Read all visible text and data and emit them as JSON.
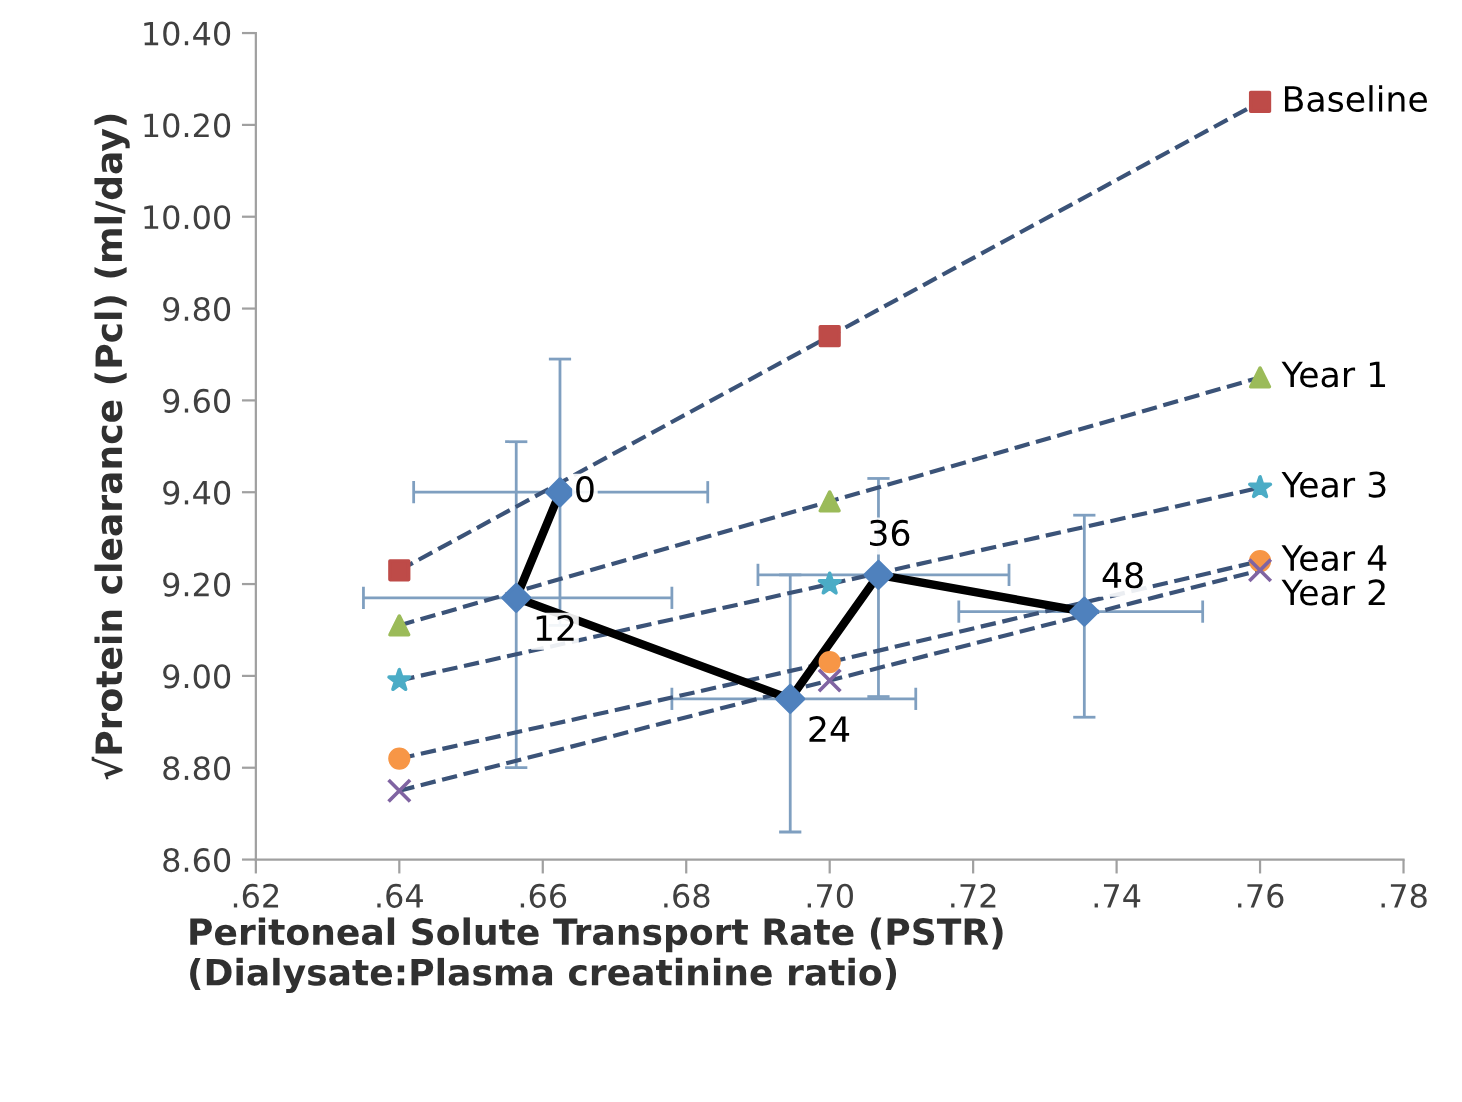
{
  "chart_data": {
    "type": "line",
    "xlabel": "Peritoneal Solute Transport Rate (PSTR)\n(Dialysate:Plasma creatinine ratio)",
    "ylabel": "√Protein clearance (Pcl) (ml/day)",
    "xlim": [
      0.62,
      0.78
    ],
    "ylim": [
      8.6,
      10.4
    ],
    "xticks": [
      {
        "value": 0.62,
        "label": ".62"
      },
      {
        "value": 0.64,
        "label": ".64"
      },
      {
        "value": 0.66,
        "label": ".66"
      },
      {
        "value": 0.68,
        "label": ".68"
      },
      {
        "value": 0.7,
        "label": ".70"
      },
      {
        "value": 0.72,
        "label": ".72"
      },
      {
        "value": 0.74,
        "label": ".74"
      },
      {
        "value": 0.76,
        "label": ".76"
      },
      {
        "value": 0.78,
        "label": ".78"
      }
    ],
    "yticks": [
      {
        "value": 8.6,
        "label": "8.60"
      },
      {
        "value": 8.8,
        "label": "8.80"
      },
      {
        "value": 9.0,
        "label": "9.00"
      },
      {
        "value": 9.2,
        "label": "9.20"
      },
      {
        "value": 9.4,
        "label": "9.40"
      },
      {
        "value": 9.6,
        "label": "9.60"
      },
      {
        "value": 9.8,
        "label": "9.80"
      },
      {
        "value": 10.0,
        "label": "10.00"
      },
      {
        "value": 10.2,
        "label": "10.20"
      },
      {
        "value": 10.4,
        "label": "10.40"
      }
    ],
    "grid": false,
    "legend": false,
    "series": [
      {
        "name": "Baseline",
        "color": "#be4b48",
        "marker": "square",
        "line_style": "dashed",
        "x": [
          0.64,
          0.7,
          0.76
        ],
        "values": [
          9.23,
          9.74,
          10.25
        ]
      },
      {
        "name": "Year 1",
        "color": "#9bbb59",
        "marker": "triangle",
        "line_style": "dashed",
        "x": [
          0.64,
          0.7,
          0.76
        ],
        "values": [
          9.11,
          9.38,
          9.65
        ]
      },
      {
        "name": "Year 3",
        "color": "#4bacc6",
        "marker": "star",
        "line_style": "dashed",
        "x": [
          0.64,
          0.7,
          0.76
        ],
        "values": [
          8.99,
          9.2,
          9.41
        ]
      },
      {
        "name": "Year 4",
        "color": "#f79646",
        "marker": "circle",
        "line_style": "dashed",
        "x": [
          0.64,
          0.7,
          0.76
        ],
        "values": [
          8.82,
          9.03,
          9.25
        ]
      },
      {
        "name": "Year 2",
        "color": "#8064a2",
        "marker": "cross",
        "line_style": "dashed",
        "x": [
          0.64,
          0.7,
          0.76
        ],
        "values": [
          8.75,
          8.99,
          9.23
        ]
      },
      {
        "color": "#4f81bd",
        "marker": "diamond",
        "line_style": "solid",
        "x": [
          0.6624,
          0.6563,
          0.6945,
          0.7068,
          0.7355
        ],
        "values": [
          9.4,
          9.17,
          8.95,
          9.22,
          9.14
        ],
        "errors": [
          [
            9.11,
            9.69
          ],
          [
            8.8,
            9.51
          ],
          [
            8.66,
            9.22
          ],
          [
            8.955,
            9.43
          ],
          [
            8.91,
            9.35
          ]
        ],
        "xerrors": [
          [
            0.642,
            0.683
          ],
          [
            0.635,
            0.678
          ],
          [
            0.678,
            0.712
          ],
          [
            0.69,
            0.725
          ],
          [
            0.718,
            0.752
          ]
        ]
      }
    ],
    "annotations": [
      {
        "text": "0",
        "x": 0.6624,
        "y": 9.4
      },
      {
        "text": "12",
        "x": 0.6563,
        "y": 9.17
      },
      {
        "text": "24",
        "x": 0.6945,
        "y": 8.95
      },
      {
        "text": "36",
        "x": 0.7068,
        "y": 9.22
      },
      {
        "text": "48",
        "x": 0.7355,
        "y": 9.14
      }
    ]
  }
}
